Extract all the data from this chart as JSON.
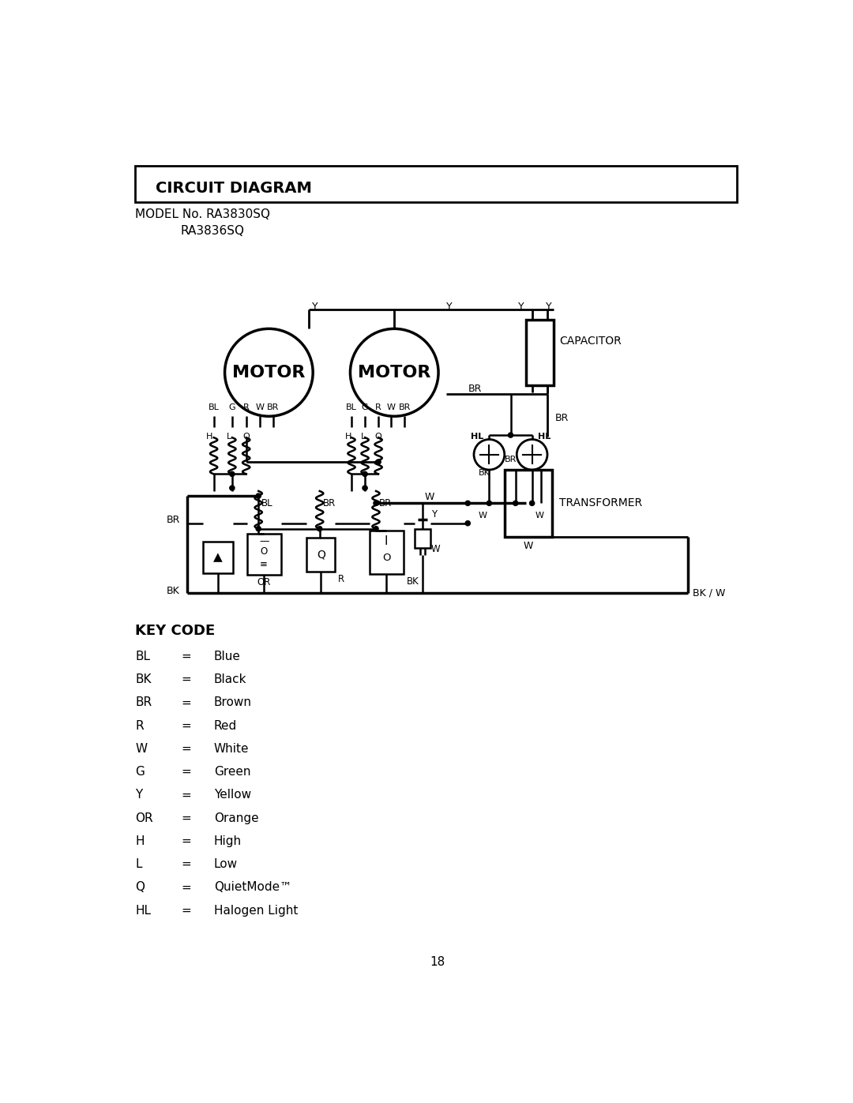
{
  "title": "CIRCUIT DIAGRAM",
  "model_line1": "MODEL No. RA3830SQ",
  "model_line2": "RA3836SQ",
  "page_number": "18",
  "bg_color": "#ffffff",
  "key_code_title": "KEY CODE",
  "key_codes": [
    [
      "BL",
      "=",
      "Blue"
    ],
    [
      "BK",
      "=",
      "Black"
    ],
    [
      "BR",
      "=",
      "Brown"
    ],
    [
      "R",
      "=",
      "Red"
    ],
    [
      "W",
      "=",
      "White"
    ],
    [
      "G",
      "=",
      "Green"
    ],
    [
      "Y",
      "=",
      "Yellow"
    ],
    [
      "OR",
      "=",
      "Orange"
    ],
    [
      "H",
      "=",
      "High"
    ],
    [
      "L",
      "=",
      "Low"
    ],
    [
      "Q",
      "=",
      "QuietMode™"
    ],
    [
      "HL",
      "=",
      "Halogen Light"
    ]
  ]
}
